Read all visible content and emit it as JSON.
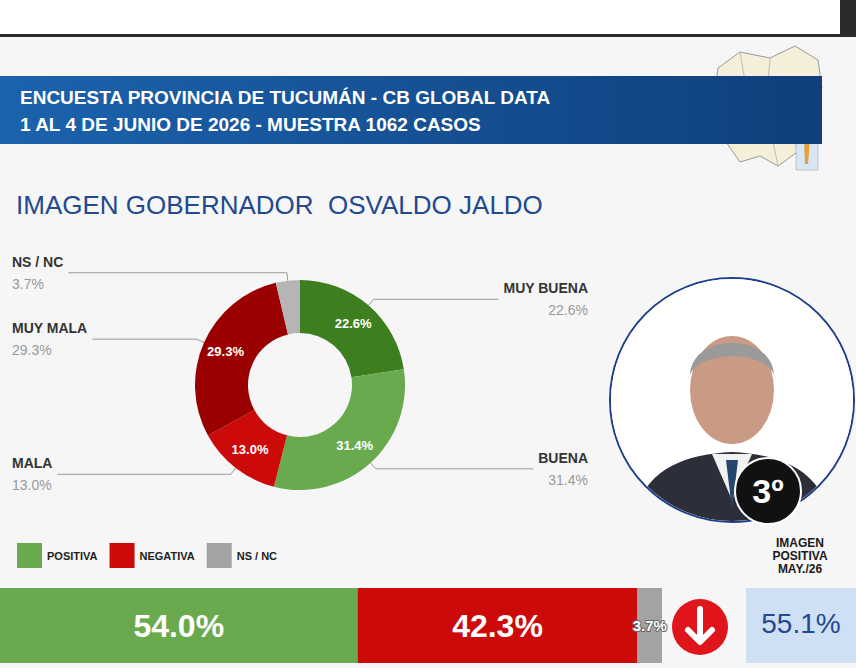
{
  "header": {
    "title_lines": [
      "ENCUESTA PROVINCIA DE TUCUMÁN - CB GLOBAL DATA",
      "1 AL 4 DE JUNIO DE 2026 - MUESTRA 1062 CASOS"
    ]
  },
  "chart_data": [
    {
      "type": "pie",
      "title": "IMAGEN GOBERNADOR  OSVALDO JALDO",
      "categories": [
        "MUY BUENA",
        "BUENA",
        "MALA",
        "MUY MALA",
        "NS / NC"
      ],
      "values": [
        22.6,
        31.4,
        13.0,
        29.3,
        3.7
      ],
      "value_labels": [
        "22.6%",
        "31.4%",
        "13.0%",
        "29.3%",
        "3.7%"
      ],
      "colors": [
        "#3d7e1f",
        "#6aaa4f",
        "#cc0a0a",
        "#9b0000",
        "#b5b5b5"
      ],
      "data_labels": true
    },
    {
      "type": "bar",
      "orientation": "horizontal",
      "stacked": true,
      "categories": [
        null
      ],
      "series": [
        {
          "name": "POSITIVA",
          "color": "#6aaa4f",
          "values": [
            54.0
          ],
          "value_labels": [
            "54.0%"
          ]
        },
        {
          "name": "NEGATIVA",
          "color": "#cc0a0a",
          "values": [
            42.3
          ],
          "value_labels": [
            "42.3%"
          ]
        },
        {
          "name": "NS / NC",
          "color": "#a3a3a3",
          "values": [
            3.7
          ],
          "value_labels": [
            "3.7%"
          ]
        }
      ],
      "xlim": [
        0,
        100
      ],
      "legend": "top left",
      "data_labels": true,
      "tick_labels": false
    }
  ],
  "ranking_badge": "3º",
  "previous": {
    "label": "IMAGEN POSITIVA MAY./26",
    "value": 55.1,
    "value_label": "55.1%"
  }
}
